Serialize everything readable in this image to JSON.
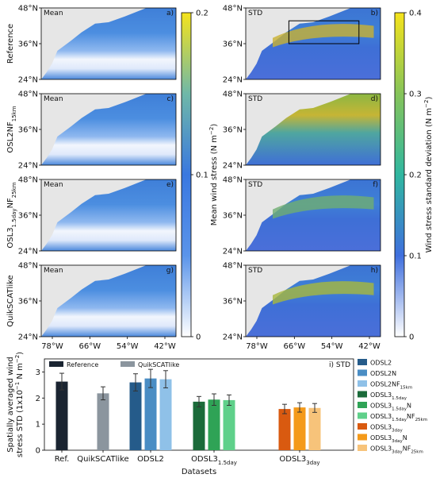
{
  "maps": {
    "row_labels": [
      "Reference",
      "OSL2NF",
      "OSL3",
      "QuikSCATlike"
    ],
    "row_label_subs": [
      "",
      "15km",
      "1.5day",
      ""
    ],
    "row_label_suffix": [
      "",
      "",
      "NF",
      ""
    ],
    "row_label_suffix_sub": [
      "",
      "",
      "25km",
      ""
    ],
    "mean_tag": "Mean",
    "std_tag": "STD",
    "panel_letters_left": [
      "a)",
      "c)",
      "e)",
      "g)"
    ],
    "panel_letters_right": [
      "b)",
      "d)",
      "f)",
      "h)"
    ],
    "lat_ticks": [
      "48°N",
      "36°N",
      "24°N"
    ],
    "lon_ticks": [
      "78°W",
      "66°W",
      "54°W",
      "42°W"
    ],
    "colorbar_mean": {
      "label": "Mean wind stress (N m",
      "label_sup": "−2",
      "label_end": ")",
      "ticks": [
        "0.2",
        "0.1",
        "0"
      ],
      "range": [
        0,
        0.2
      ]
    },
    "colorbar_std": {
      "label": "Wind stress standard deviation (N m",
      "label_sup": "−2",
      "label_end": ")",
      "ticks": [
        "0.4",
        "0.3",
        "0.2",
        "0.1",
        "0"
      ],
      "range": [
        0,
        0.4
      ]
    },
    "colors": {
      "land": "#e6e6e6",
      "ocean_mean": "#4a90d9",
      "ocean_std": "#4f7fd6"
    }
  },
  "chart_data": {
    "type": "bar",
    "panel_label": "i) STD",
    "ylabel_line1": "Spatially averaged wind",
    "ylabel_line2": "stress STD (1x10",
    "ylabel_sup1": "−1",
    "ylabel_mid": " N m",
    "ylabel_sup2": "−2",
    "ylabel_end": ")",
    "xlabel": "Datasets",
    "ylim": [
      0,
      3.5
    ],
    "yticks": [
      "0",
      "1",
      "2",
      "3"
    ],
    "groups": [
      "Ref.",
      "QuikSCATlike",
      "ODSL2",
      "ODSL3",
      "ODSL3"
    ],
    "group_subs": [
      "",
      "",
      "",
      "1.5day",
      "3day"
    ],
    "bars": [
      {
        "name": "Reference",
        "group": 0,
        "value": 2.63,
        "err": 0.32,
        "color": "#1a2431"
      },
      {
        "name": "QuikSCATlike",
        "group": 1,
        "value": 2.18,
        "err": 0.25,
        "color": "#8b959e"
      },
      {
        "name": "ODSL2",
        "group": 2,
        "value": 2.6,
        "err": 0.33,
        "color": "#255b8a"
      },
      {
        "name": "ODSL2N",
        "group": 2,
        "value": 2.75,
        "err": 0.35,
        "color": "#4a8dc4"
      },
      {
        "name": "ODSL2NF15km",
        "group": 2,
        "value": 2.72,
        "err": 0.33,
        "color": "#8fc1e8"
      },
      {
        "name": "ODSL31.5day",
        "group": 3,
        "value": 1.86,
        "err": 0.2,
        "color": "#1b6b3a"
      },
      {
        "name": "ODSL31.5dayN",
        "group": 3,
        "value": 1.94,
        "err": 0.22,
        "color": "#2fa356"
      },
      {
        "name": "ODSL31.5dayNF25km",
        "group": 3,
        "value": 1.92,
        "err": 0.2,
        "color": "#5fd08a"
      },
      {
        "name": "ODSL33day",
        "group": 4,
        "value": 1.58,
        "err": 0.18,
        "color": "#d95a10"
      },
      {
        "name": "ODSL33dayN",
        "group": 4,
        "value": 1.64,
        "err": 0.18,
        "color": "#f49a1a"
      },
      {
        "name": "ODSL33dayNF25km",
        "group": 4,
        "value": 1.62,
        "err": 0.17,
        "color": "#f7c37a"
      }
    ],
    "legend_top": [
      {
        "text": "Reference",
        "color": "#1a2431"
      },
      {
        "text": "QuikSCATlike",
        "color": "#8b959e"
      }
    ],
    "legend_right": [
      {
        "base": "ODSL2",
        "sub": "",
        "tail": "",
        "tailsub": "",
        "color": "#255b8a"
      },
      {
        "base": "ODSL2N",
        "sub": "",
        "tail": "",
        "tailsub": "",
        "color": "#4a8dc4"
      },
      {
        "base": "ODSL2NF",
        "sub": "15km",
        "tail": "",
        "tailsub": "",
        "color": "#8fc1e8"
      },
      {
        "base": "ODSL3",
        "sub": "1.5day",
        "tail": "",
        "tailsub": "",
        "color": "#1b6b3a"
      },
      {
        "base": "ODSL3",
        "sub": "1.5day",
        "tail": "N",
        "tailsub": "",
        "color": "#2fa356"
      },
      {
        "base": "ODSL3",
        "sub": "1.5day",
        "tail": "NF",
        "tailsub": "25km",
        "color": "#5fd08a"
      },
      {
        "base": "ODSL3",
        "sub": "3day",
        "tail": "",
        "tailsub": "",
        "color": "#d95a10"
      },
      {
        "base": "ODSL3",
        "sub": "3day",
        "tail": "N",
        "tailsub": "",
        "color": "#f49a1a"
      },
      {
        "base": "ODSL3",
        "sub": "3day",
        "tail": "NF",
        "tailsub": "25km",
        "color": "#f7c37a"
      }
    ]
  }
}
